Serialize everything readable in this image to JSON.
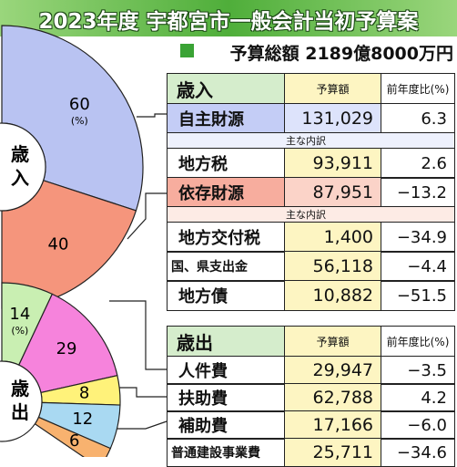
{
  "header": {
    "title": "2023年度 宇都宮市一般会計当初予算案",
    "total": "予算総額 2189億8000万円"
  },
  "chart_data": [
    {
      "type": "pie",
      "title": "歳入",
      "unit_label": "(%)",
      "values": [
        60,
        40
      ],
      "colors": [
        "#b9c3f2",
        "#f5957c"
      ]
    },
    {
      "type": "pie",
      "title": "歳出",
      "unit_label": "(%)",
      "values": [
        14,
        29,
        8,
        12,
        6
      ],
      "colors": [
        "#c9efb2",
        "#f683dc",
        "#fff27a",
        "#a9d9f2",
        "#f8b26f"
      ]
    }
  ],
  "tables": [
    {
      "columns": [
        "歳入",
        "予算額",
        "前年度比(%)"
      ],
      "rows": [
        {
          "label": "自主財源",
          "amount": "131,029",
          "change": "6.3",
          "color": "#c4cdf6",
          "light": "#dde3fb"
        },
        {
          "note": "主な内訳",
          "color": "#eef1fd"
        },
        {
          "label": "地方税",
          "amount": "93,911",
          "change": "2.6"
        },
        {
          "label": "依存財源",
          "amount": "87,951",
          "change": "−13.2",
          "color": "#f7ad9e",
          "light": "#fbd3c8"
        },
        {
          "note": "主な内訳",
          "color": "#fdebe5"
        },
        {
          "label": "地方交付税",
          "amount": "1,400",
          "change": "−34.9"
        },
        {
          "label": "国、県支出金",
          "amount": "56,118",
          "change": "−4.4"
        },
        {
          "label": "地方債",
          "amount": "10,882",
          "change": "−51.5"
        }
      ]
    },
    {
      "columns": [
        "歳出",
        "予算額",
        "前年度比(%)"
      ],
      "rows": [
        {
          "label": "人件費",
          "amount": "29,947",
          "change": "−3.5"
        },
        {
          "label": "扶助費",
          "amount": "62,788",
          "change": "4.2"
        },
        {
          "label": "補助費",
          "amount": "17,166",
          "change": "−6.0"
        },
        {
          "label": "普通建設事業費",
          "amount": "25,711",
          "change": "−34.6"
        }
      ]
    }
  ]
}
